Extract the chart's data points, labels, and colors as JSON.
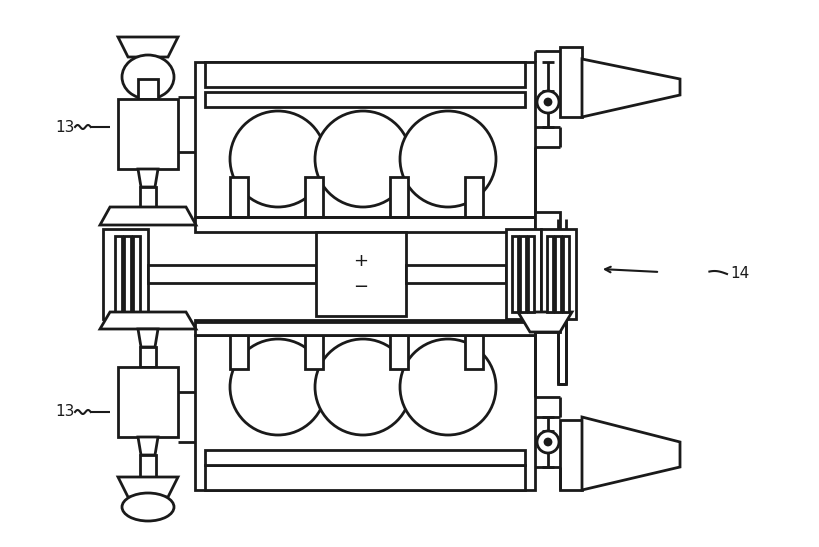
{
  "bg": "#ffffff",
  "lc": "#1a1a1a",
  "lw": 2.0
}
